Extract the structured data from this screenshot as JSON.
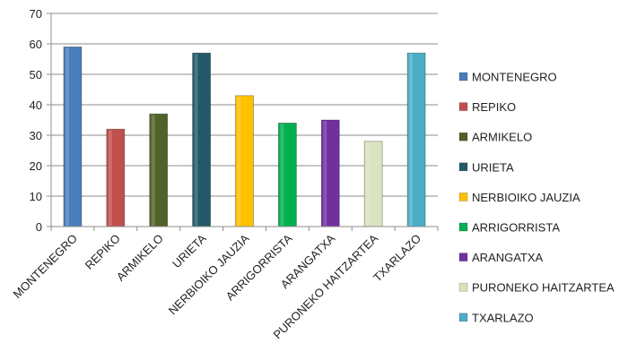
{
  "chart_data": {
    "type": "bar",
    "categories": [
      "MONTENEGRO",
      "REPIKO",
      "ARMIKELO",
      "URIETA",
      "NERBIOIKO JAUZIA",
      "ARRIGORRISTA",
      "ARANGATXA",
      "PURONEKO HAITZARTEA",
      "TXARLAZO"
    ],
    "values": [
      59,
      32,
      37,
      57,
      43,
      34,
      35,
      28,
      57
    ],
    "colors": [
      "#4a7ebb",
      "#c0504d",
      "#4f6228",
      "#215968",
      "#ffc000",
      "#00b050",
      "#7030a0",
      "#d7e4bd",
      "#4bacc6"
    ],
    "ylim": [
      0,
      70
    ],
    "yticks": [
      0,
      10,
      20,
      30,
      40,
      50,
      60,
      70
    ],
    "title": "",
    "xlabel": "",
    "ylabel": "",
    "grid": true,
    "legend": {
      "position": "right",
      "entries": [
        "MONTENEGRO",
        "REPIKO",
        "ARMIKELO",
        "URIETA",
        "NERBIOIKO JAUZIA",
        "ARRIGORRISTA",
        "ARANGATXA",
        "PURONEKO HAITZARTEA",
        "TXARLAZO"
      ]
    }
  }
}
